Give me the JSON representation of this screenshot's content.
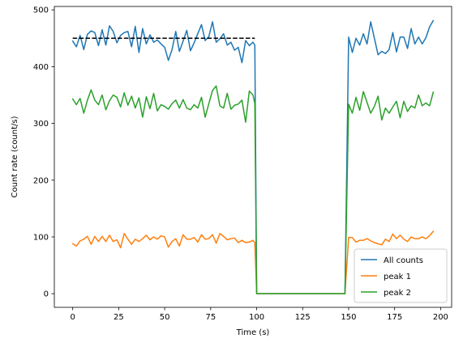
{
  "chart_data": {
    "type": "line",
    "xlabel": "Time (s)",
    "ylabel": "Count rate (count/s)",
    "xlim": [
      -10,
      206
    ],
    "ylim": [
      -24,
      506
    ],
    "xticks": [
      0,
      25,
      50,
      75,
      100,
      125,
      150,
      175,
      200
    ],
    "yticks": [
      0,
      100,
      200,
      300,
      400,
      500
    ],
    "grid": false,
    "legend_position": "lower-right",
    "series": [
      {
        "name": "All counts",
        "color": "#1f77b4",
        "x": [
          0,
          2,
          4,
          6,
          8,
          10,
          12,
          14,
          16,
          18,
          20,
          22,
          24,
          26,
          28,
          30,
          32,
          34,
          36,
          38,
          40,
          42,
          44,
          46,
          48,
          50,
          52,
          54,
          56,
          58,
          60,
          62,
          64,
          66,
          68,
          70,
          72,
          74,
          76,
          78,
          80,
          82,
          84,
          86,
          88,
          90,
          92,
          94,
          96,
          98,
          99,
          100,
          148,
          150,
          152,
          154,
          156,
          158,
          160,
          162,
          164,
          166,
          168,
          170,
          172,
          174,
          176,
          178,
          180,
          182,
          184,
          186,
          188,
          190,
          192,
          194,
          196
        ],
        "y": [
          445,
          435,
          455,
          430,
          457,
          463,
          460,
          437,
          465,
          438,
          472,
          462,
          442,
          455,
          460,
          462,
          435,
          471,
          425,
          467,
          440,
          456,
          443,
          447,
          440,
          434,
          411,
          430,
          462,
          427,
          445,
          464,
          428,
          442,
          458,
          474,
          446,
          453,
          479,
          443,
          449,
          458,
          438,
          443,
          429,
          434,
          407,
          446,
          437,
          443,
          438,
          0,
          0,
          452,
          425,
          450,
          438,
          458,
          440,
          479,
          450,
          421,
          427,
          423,
          430,
          460,
          426,
          452,
          452,
          432,
          467,
          440,
          452,
          440,
          451,
          470,
          481
        ]
      },
      {
        "name": "peak 1",
        "color": "#ff7f0e",
        "x": [
          0,
          2,
          4,
          6,
          8,
          10,
          12,
          14,
          16,
          18,
          20,
          22,
          24,
          26,
          28,
          30,
          32,
          34,
          36,
          38,
          40,
          42,
          44,
          46,
          48,
          50,
          52,
          54,
          56,
          58,
          60,
          62,
          64,
          66,
          68,
          70,
          72,
          74,
          76,
          78,
          80,
          82,
          84,
          86,
          88,
          90,
          92,
          94,
          96,
          98,
          99,
          100,
          148,
          150,
          152,
          154,
          156,
          158,
          160,
          162,
          164,
          166,
          168,
          170,
          172,
          174,
          176,
          178,
          180,
          182,
          184,
          186,
          188,
          190,
          192,
          194,
          196
        ],
        "y": [
          88,
          84,
          93,
          96,
          101,
          87,
          101,
          92,
          101,
          92,
          103,
          92,
          95,
          81,
          106,
          96,
          87,
          96,
          92,
          97,
          103,
          95,
          100,
          96,
          102,
          100,
          82,
          92,
          97,
          84,
          104,
          96,
          96,
          99,
          91,
          104,
          96,
          97,
          104,
          89,
          106,
          101,
          95,
          97,
          98,
          90,
          94,
          90,
          91,
          94,
          90,
          0,
          0,
          99,
          99,
          91,
          94,
          94,
          97,
          93,
          90,
          88,
          86,
          96,
          92,
          105,
          97,
          103,
          96,
          92,
          100,
          97,
          97,
          100,
          97,
          102,
          110
        ]
      },
      {
        "name": "peak 2",
        "color": "#2ca02c",
        "x": [
          0,
          2,
          4,
          6,
          8,
          10,
          12,
          14,
          16,
          18,
          20,
          22,
          24,
          26,
          28,
          30,
          32,
          34,
          36,
          38,
          40,
          42,
          44,
          46,
          48,
          50,
          52,
          54,
          56,
          58,
          60,
          62,
          64,
          66,
          68,
          70,
          72,
          74,
          76,
          78,
          80,
          82,
          84,
          86,
          88,
          90,
          92,
          94,
          96,
          98,
          99,
          100,
          148,
          150,
          152,
          154,
          156,
          158,
          160,
          162,
          164,
          166,
          168,
          170,
          172,
          174,
          176,
          178,
          180,
          182,
          184,
          186,
          188,
          190,
          192,
          194,
          196
        ],
        "y": [
          343,
          333,
          344,
          318,
          341,
          359,
          341,
          333,
          350,
          324,
          340,
          350,
          346,
          329,
          354,
          332,
          348,
          327,
          345,
          311,
          347,
          326,
          353,
          322,
          333,
          330,
          325,
          335,
          341,
          327,
          342,
          327,
          324,
          333,
          327,
          346,
          311,
          335,
          358,
          366,
          331,
          327,
          353,
          325,
          332,
          334,
          341,
          302,
          357,
          350,
          335,
          0,
          0,
          334,
          318,
          346,
          323,
          356,
          337,
          318,
          330,
          348,
          306,
          327,
          318,
          329,
          339,
          310,
          339,
          321,
          331,
          327,
          350,
          331,
          336,
          331,
          355
        ]
      }
    ],
    "reference_line": {
      "color": "#000000",
      "style": "dashed",
      "x": [
        0,
        99
      ],
      "y": [
        450,
        450
      ]
    }
  }
}
